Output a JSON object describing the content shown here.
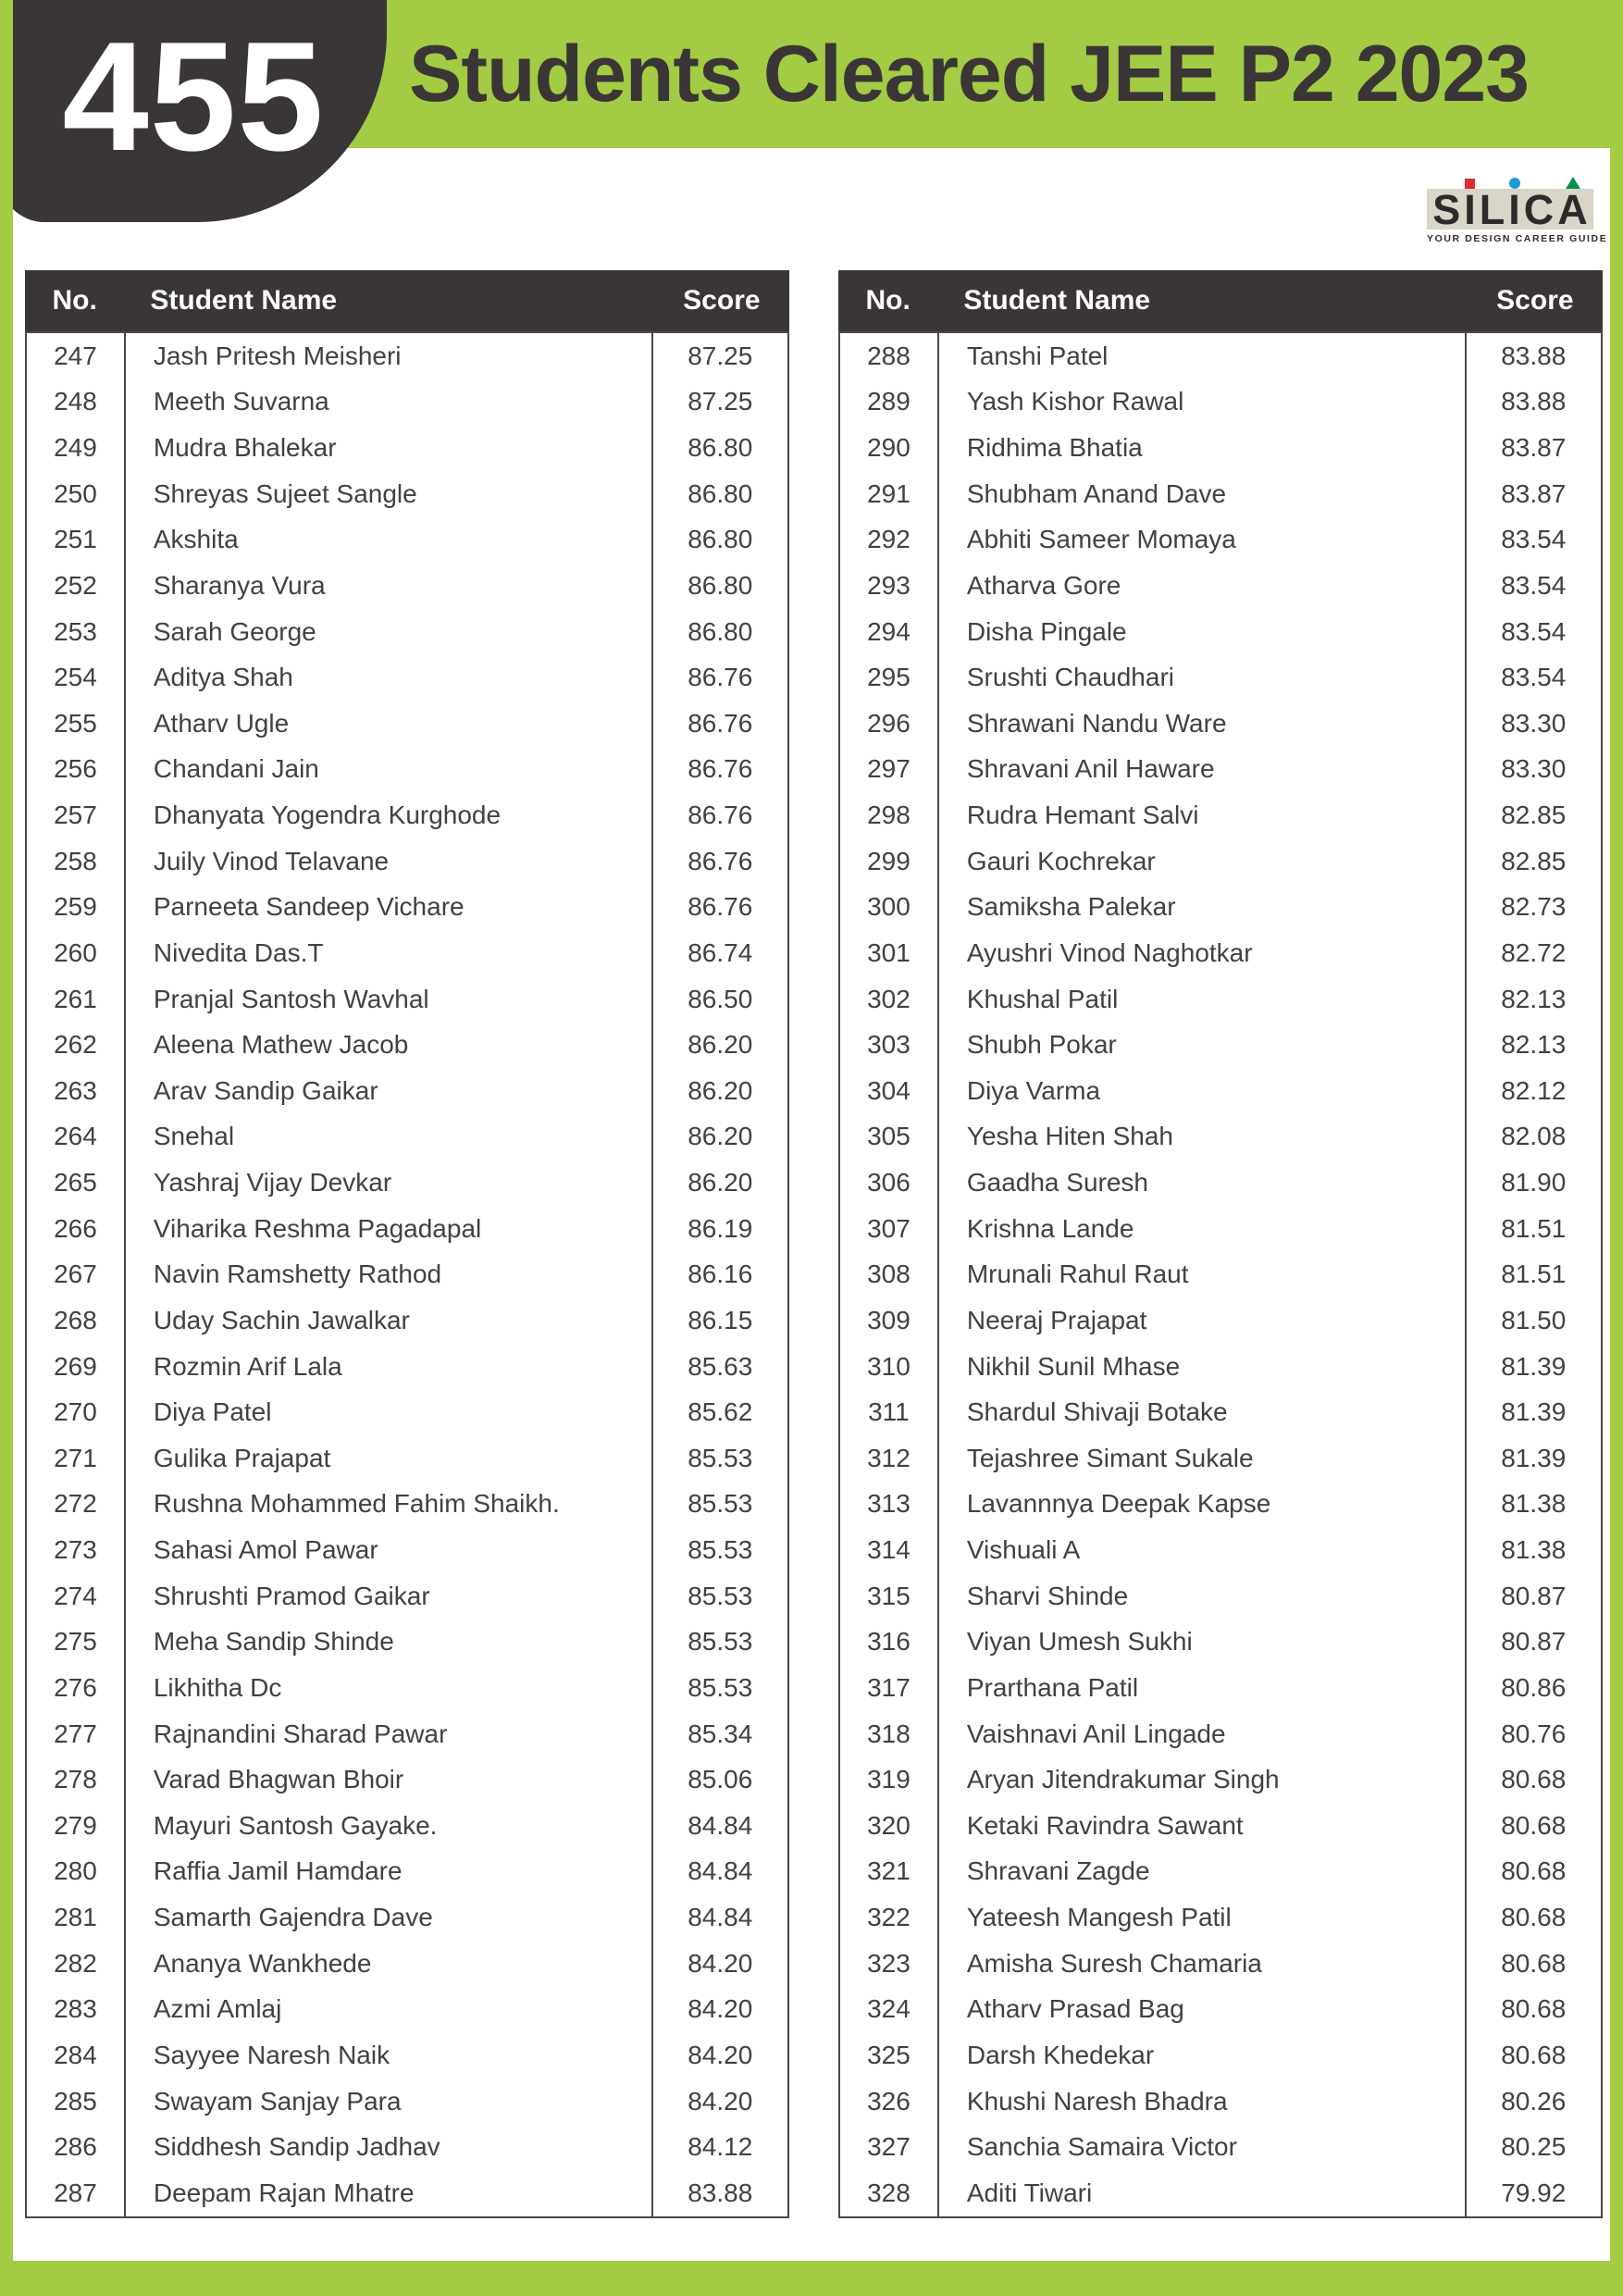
{
  "header": {
    "count": "455",
    "title": "Students Cleared JEE P2 2023"
  },
  "logo": {
    "name": "SILICA",
    "letters": [
      {
        "ch": "S",
        "mark": null
      },
      {
        "ch": "I",
        "mark": "square"
      },
      {
        "ch": "L",
        "mark": null
      },
      {
        "ch": "I",
        "mark": "circle"
      },
      {
        "ch": "C",
        "mark": null
      },
      {
        "ch": "A",
        "mark": "triangle"
      }
    ],
    "tagline": "YOUR DESIGN CAREER GUIDE"
  },
  "colors": {
    "brand_green": "#a4cb44",
    "dark_charcoal": "#3a3536",
    "logo_background": "#d9d6c9",
    "logo_red": "#e32b2b",
    "logo_blue": "#1f99d5",
    "logo_green": "#009247",
    "body_text": "#414141",
    "table_border": "#4b4647"
  },
  "table_headers": {
    "no": "No.",
    "name": "Student Name",
    "score": "Score"
  },
  "tables": [
    {
      "rows": [
        [
          "247",
          "Jash Pritesh Meisheri",
          "87.25"
        ],
        [
          "248",
          "Meeth Suvarna",
          "87.25"
        ],
        [
          "249",
          "Mudra Bhalekar",
          "86.80"
        ],
        [
          "250",
          "Shreyas Sujeet Sangle",
          "86.80"
        ],
        [
          "251",
          "Akshita",
          "86.80"
        ],
        [
          "252",
          "Sharanya Vura",
          "86.80"
        ],
        [
          "253",
          "Sarah George",
          "86.80"
        ],
        [
          "254",
          "Aditya Shah",
          "86.76"
        ],
        [
          "255",
          "Atharv Ugle",
          "86.76"
        ],
        [
          "256",
          "Chandani Jain",
          "86.76"
        ],
        [
          "257",
          "Dhanyata Yogendra Kurghode",
          "86.76"
        ],
        [
          "258",
          "Juily Vinod Telavane",
          "86.76"
        ],
        [
          "259",
          "Parneeta Sandeep Vichare",
          "86.76"
        ],
        [
          "260",
          "Nivedita Das.T",
          "86.74"
        ],
        [
          "261",
          "Pranjal Santosh Wavhal",
          "86.50"
        ],
        [
          "262",
          "Aleena Mathew Jacob",
          "86.20"
        ],
        [
          "263",
          "Arav Sandip Gaikar",
          "86.20"
        ],
        [
          "264",
          "Snehal",
          "86.20"
        ],
        [
          "265",
          "Yashraj Vijay Devkar",
          "86.20"
        ],
        [
          "266",
          "Viharika Reshma Pagadapal",
          "86.19"
        ],
        [
          "267",
          "Navin Ramshetty Rathod",
          "86.16"
        ],
        [
          "268",
          "Uday Sachin Jawalkar",
          "86.15"
        ],
        [
          "269",
          "Rozmin Arif Lala",
          "85.63"
        ],
        [
          "270",
          "Diya Patel",
          "85.62"
        ],
        [
          "271",
          "Gulika Prajapat",
          "85.53"
        ],
        [
          "272",
          "Rushna Mohammed Fahim Shaikh.",
          "85.53"
        ],
        [
          "273",
          "Sahasi Amol Pawar",
          "85.53"
        ],
        [
          "274",
          "Shrushti Pramod Gaikar",
          "85.53"
        ],
        [
          "275",
          "Meha Sandip Shinde",
          "85.53"
        ],
        [
          "276",
          "Likhitha Dc",
          "85.53"
        ],
        [
          "277",
          "Rajnandini Sharad Pawar",
          "85.34"
        ],
        [
          "278",
          "Varad Bhagwan Bhoir",
          "85.06"
        ],
        [
          "279",
          "Mayuri Santosh Gayake.",
          "84.84"
        ],
        [
          "280",
          "Raffia Jamil Hamdare",
          "84.84"
        ],
        [
          "281",
          "Samarth Gajendra Dave",
          "84.84"
        ],
        [
          "282",
          "Ananya Wankhede",
          "84.20"
        ],
        [
          "283",
          "Azmi Amlaj",
          "84.20"
        ],
        [
          "284",
          "Sayyee Naresh Naik",
          "84.20"
        ],
        [
          "285",
          "Swayam Sanjay Para",
          "84.20"
        ],
        [
          "286",
          "Siddhesh Sandip Jadhav",
          "84.12"
        ],
        [
          "287",
          "Deepam Rajan Mhatre",
          "83.88"
        ]
      ]
    },
    {
      "rows": [
        [
          "288",
          "Tanshi Patel",
          "83.88"
        ],
        [
          "289",
          "Yash Kishor Rawal",
          "83.88"
        ],
        [
          "290",
          "Ridhima Bhatia",
          "83.87"
        ],
        [
          "291",
          "Shubham Anand Dave",
          "83.87"
        ],
        [
          "292",
          "Abhiti Sameer Momaya",
          "83.54"
        ],
        [
          "293",
          "Atharva Gore",
          "83.54"
        ],
        [
          "294",
          "Disha Pingale",
          "83.54"
        ],
        [
          "295",
          "Srushti Chaudhari",
          "83.54"
        ],
        [
          "296",
          "Shrawani Nandu Ware",
          "83.30"
        ],
        [
          "297",
          "Shravani Anil Haware",
          "83.30"
        ],
        [
          "298",
          "Rudra Hemant Salvi",
          "82.85"
        ],
        [
          "299",
          "Gauri Kochrekar",
          "82.85"
        ],
        [
          "300",
          "Samiksha Palekar",
          "82.73"
        ],
        [
          "301",
          "Ayushri Vinod Naghotkar",
          "82.72"
        ],
        [
          "302",
          "Khushal Patil",
          "82.13"
        ],
        [
          "303",
          "Shubh Pokar",
          "82.13"
        ],
        [
          "304",
          "Diya Varma",
          "82.12"
        ],
        [
          "305",
          "Yesha Hiten Shah",
          "82.08"
        ],
        [
          "306",
          "Gaadha Suresh",
          "81.90"
        ],
        [
          "307",
          "Krishna Lande",
          "81.51"
        ],
        [
          "308",
          "Mrunali Rahul Raut",
          "81.51"
        ],
        [
          "309",
          "Neeraj Prajapat",
          "81.50"
        ],
        [
          "310",
          "Nikhil Sunil Mhase",
          "81.39"
        ],
        [
          "311",
          "Shardul Shivaji Botake",
          "81.39"
        ],
        [
          "312",
          "Tejashree Simant Sukale",
          "81.39"
        ],
        [
          "313",
          "Lavannnya Deepak Kapse",
          "81.38"
        ],
        [
          "314",
          "Vishuali A",
          "81.38"
        ],
        [
          "315",
          "Sharvi Shinde",
          "80.87"
        ],
        [
          "316",
          "Viyan Umesh Sukhi",
          "80.87"
        ],
        [
          "317",
          "Prarthana Patil",
          "80.86"
        ],
        [
          "318",
          "Vaishnavi Anil Lingade",
          "80.76"
        ],
        [
          "319",
          "Aryan Jitendrakumar Singh",
          "80.68"
        ],
        [
          "320",
          "Ketaki Ravindra Sawant",
          "80.68"
        ],
        [
          "321",
          "Shravani Zagde",
          "80.68"
        ],
        [
          "322",
          "Yateesh Mangesh Patil",
          "80.68"
        ],
        [
          "323",
          "Amisha Suresh Chamaria",
          "80.68"
        ],
        [
          "324",
          "Atharv Prasad Bag",
          "80.68"
        ],
        [
          "325",
          "Darsh Khedekar",
          "80.68"
        ],
        [
          "326",
          "Khushi Naresh Bhadra",
          "80.26"
        ],
        [
          "327",
          "Sanchia Samaira Victor",
          "80.25"
        ],
        [
          "328",
          "Aditi Tiwari",
          "79.92"
        ]
      ]
    }
  ]
}
